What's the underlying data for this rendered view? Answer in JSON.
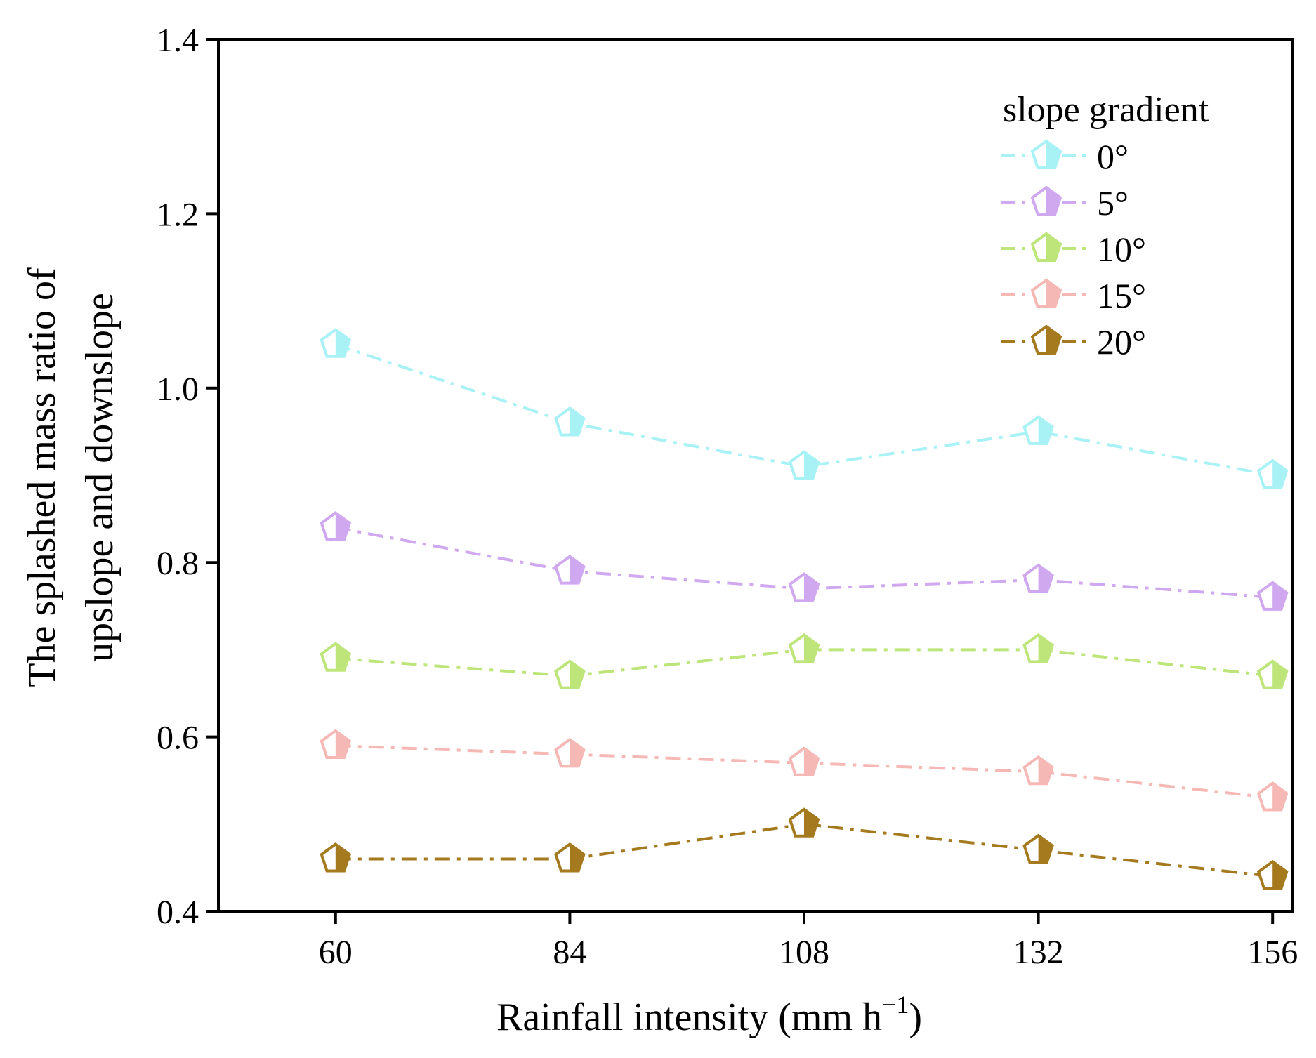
{
  "chart_data": {
    "type": "line",
    "title": "",
    "xlabel": "Rainfall intensity (mm h",
    "xlabel_sup": "−1",
    "xlabel_close": ")",
    "ylabel_line1": "The splashed mass ratio of",
    "ylabel_line2": "upslope and downslope",
    "x": [
      60,
      84,
      108,
      132,
      156
    ],
    "x_tick_labels": [
      "60",
      "84",
      "108",
      "132",
      "156"
    ],
    "xlim": [
      48,
      158
    ],
    "ylim": [
      0.4,
      1.4
    ],
    "y_ticks": [
      0.4,
      0.6,
      0.8,
      1.0,
      1.2,
      1.4
    ],
    "y_tick_labels": [
      "0.4",
      "0.6",
      "0.8",
      "1.0",
      "1.2",
      "1.4"
    ],
    "legend_title": "slope gradient",
    "legend_position": "top-right",
    "series": [
      {
        "name": "0°",
        "color": "#a8f2f6",
        "values": [
          1.05,
          0.96,
          0.91,
          0.95,
          0.9
        ]
      },
      {
        "name": "5°",
        "color": "#cfa8f0",
        "values": [
          0.84,
          0.79,
          0.77,
          0.78,
          0.76
        ]
      },
      {
        "name": "10°",
        "color": "#bde57a",
        "values": [
          0.69,
          0.67,
          0.7,
          0.7,
          0.67
        ]
      },
      {
        "name": "15°",
        "color": "#f6b8b5",
        "values": [
          0.59,
          0.58,
          0.57,
          0.56,
          0.53
        ]
      },
      {
        "name": "20°",
        "color": "#a57a1f",
        "values": [
          0.46,
          0.46,
          0.5,
          0.47,
          0.44
        ]
      }
    ]
  }
}
